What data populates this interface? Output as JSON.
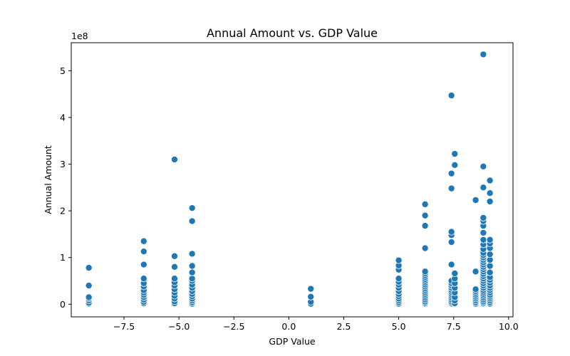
{
  "chart_data": {
    "type": "scatter",
    "title": "Annual Amount vs. GDP Value",
    "xlabel": "GDP Value",
    "ylabel": "Annual Amount",
    "y_scale_label": "1e8",
    "xlim": [
      -9.9,
      10.2
    ],
    "ylim": [
      -0.27,
      5.6
    ],
    "grid": false,
    "x_ticks": [
      -7.5,
      -5.0,
      -2.5,
      0.0,
      2.5,
      5.0,
      7.5,
      10.0
    ],
    "x_tick_labels": [
      "−7.5",
      "−5.0",
      "−2.5",
      "0.0",
      "2.5",
      "5.0",
      "7.5",
      "10.0"
    ],
    "y_ticks": [
      0,
      1,
      2,
      3,
      4,
      5
    ],
    "y_tick_labels": [
      "0",
      "1",
      "2",
      "3",
      "4",
      "5"
    ],
    "color": "#1f77b4",
    "series": [
      {
        "name": "data",
        "points": [
          [
            -9.1,
            0.01
          ],
          [
            -9.1,
            0.03
          ],
          [
            -9.1,
            0.08
          ],
          [
            -9.1,
            0.12
          ],
          [
            -9.1,
            0.15
          ],
          [
            -9.1,
            0.4
          ],
          [
            -9.1,
            0.78
          ],
          [
            -6.6,
            0.02
          ],
          [
            -6.6,
            0.05
          ],
          [
            -6.6,
            0.1
          ],
          [
            -6.6,
            0.15
          ],
          [
            -6.6,
            0.2
          ],
          [
            -6.6,
            0.25
          ],
          [
            -6.6,
            0.3
          ],
          [
            -6.6,
            0.38
          ],
          [
            -6.6,
            0.45
          ],
          [
            -6.6,
            0.55
          ],
          [
            -6.6,
            0.85
          ],
          [
            -6.6,
            1.13
          ],
          [
            -6.6,
            1.35
          ],
          [
            -5.2,
            0.02
          ],
          [
            -5.2,
            0.06
          ],
          [
            -5.2,
            0.12
          ],
          [
            -5.2,
            0.18
          ],
          [
            -5.2,
            0.25
          ],
          [
            -5.2,
            0.32
          ],
          [
            -5.2,
            0.4
          ],
          [
            -5.2,
            0.47
          ],
          [
            -5.2,
            0.55
          ],
          [
            -5.2,
            0.8
          ],
          [
            -5.2,
            1.03
          ],
          [
            -5.2,
            3.1
          ],
          [
            -4.4,
            0.01
          ],
          [
            -4.4,
            0.04
          ],
          [
            -4.4,
            0.08
          ],
          [
            -4.4,
            0.12
          ],
          [
            -4.4,
            0.17
          ],
          [
            -4.4,
            0.22
          ],
          [
            -4.4,
            0.28
          ],
          [
            -4.4,
            0.35
          ],
          [
            -4.4,
            0.42
          ],
          [
            -4.4,
            0.5
          ],
          [
            -4.4,
            0.55
          ],
          [
            -4.4,
            0.68
          ],
          [
            -4.4,
            0.82
          ],
          [
            -4.4,
            1.08
          ],
          [
            -4.4,
            1.78
          ],
          [
            -4.4,
            2.06
          ],
          [
            1.0,
            0.01
          ],
          [
            1.0,
            0.05
          ],
          [
            1.0,
            0.16
          ],
          [
            1.0,
            0.33
          ],
          [
            5.0,
            0.01
          ],
          [
            5.0,
            0.04
          ],
          [
            5.0,
            0.08
          ],
          [
            5.0,
            0.12
          ],
          [
            5.0,
            0.17
          ],
          [
            5.0,
            0.22
          ],
          [
            5.0,
            0.28
          ],
          [
            5.0,
            0.35
          ],
          [
            5.0,
            0.42
          ],
          [
            5.0,
            0.48
          ],
          [
            5.0,
            0.55
          ],
          [
            5.0,
            0.74
          ],
          [
            5.0,
            0.83
          ],
          [
            5.0,
            0.94
          ],
          [
            6.2,
            0.01
          ],
          [
            6.2,
            0.03
          ],
          [
            6.2,
            0.06
          ],
          [
            6.2,
            0.1
          ],
          [
            6.2,
            0.14
          ],
          [
            6.2,
            0.18
          ],
          [
            6.2,
            0.22
          ],
          [
            6.2,
            0.26
          ],
          [
            6.2,
            0.3
          ],
          [
            6.2,
            0.34
          ],
          [
            6.2,
            0.38
          ],
          [
            6.2,
            0.42
          ],
          [
            6.2,
            0.46
          ],
          [
            6.2,
            0.5
          ],
          [
            6.2,
            0.54
          ],
          [
            6.2,
            0.58
          ],
          [
            6.2,
            0.62
          ],
          [
            6.2,
            0.66
          ],
          [
            6.2,
            0.7
          ],
          [
            6.2,
            1.2
          ],
          [
            6.2,
            1.68
          ],
          [
            6.2,
            1.9
          ],
          [
            6.2,
            2.14
          ],
          [
            7.4,
            0.01
          ],
          [
            7.4,
            0.03
          ],
          [
            7.4,
            0.06
          ],
          [
            7.4,
            0.1
          ],
          [
            7.4,
            0.14
          ],
          [
            7.4,
            0.18
          ],
          [
            7.4,
            0.22
          ],
          [
            7.4,
            0.26
          ],
          [
            7.4,
            0.3
          ],
          [
            7.4,
            0.35
          ],
          [
            7.4,
            0.4
          ],
          [
            7.4,
            0.45
          ],
          [
            7.4,
            0.5
          ],
          [
            7.4,
            0.85
          ],
          [
            7.4,
            1.33
          ],
          [
            7.4,
            1.48
          ],
          [
            7.4,
            1.55
          ],
          [
            7.4,
            2.48
          ],
          [
            7.4,
            2.8
          ],
          [
            7.4,
            4.47
          ],
          [
            7.55,
            0.02
          ],
          [
            7.55,
            0.08
          ],
          [
            7.55,
            0.15
          ],
          [
            7.55,
            0.25
          ],
          [
            7.55,
            0.35
          ],
          [
            7.55,
            0.45
          ],
          [
            7.55,
            0.55
          ],
          [
            7.55,
            0.66
          ],
          [
            7.55,
            2.98
          ],
          [
            7.55,
            3.22
          ],
          [
            8.5,
            0.01
          ],
          [
            8.5,
            0.04
          ],
          [
            8.5,
            0.08
          ],
          [
            8.5,
            0.12
          ],
          [
            8.5,
            0.16
          ],
          [
            8.5,
            0.2
          ],
          [
            8.5,
            0.24
          ],
          [
            8.5,
            0.28
          ],
          [
            8.5,
            0.32
          ],
          [
            8.5,
            0.7
          ],
          [
            8.5,
            2.23
          ],
          [
            8.85,
            0.01
          ],
          [
            8.85,
            0.03
          ],
          [
            8.85,
            0.06
          ],
          [
            8.85,
            0.1
          ],
          [
            8.85,
            0.14
          ],
          [
            8.85,
            0.18
          ],
          [
            8.85,
            0.22
          ],
          [
            8.85,
            0.26
          ],
          [
            8.85,
            0.3
          ],
          [
            8.85,
            0.35
          ],
          [
            8.85,
            0.4
          ],
          [
            8.85,
            0.45
          ],
          [
            8.85,
            0.5
          ],
          [
            8.85,
            0.55
          ],
          [
            8.85,
            0.6
          ],
          [
            8.85,
            0.65
          ],
          [
            8.85,
            0.7
          ],
          [
            8.85,
            0.75
          ],
          [
            8.85,
            0.8
          ],
          [
            8.85,
            0.85
          ],
          [
            8.85,
            0.9
          ],
          [
            8.85,
            0.95
          ],
          [
            8.85,
            1.0
          ],
          [
            8.85,
            1.05
          ],
          [
            8.85,
            1.1
          ],
          [
            8.85,
            1.18
          ],
          [
            8.85,
            1.28
          ],
          [
            8.85,
            1.38
          ],
          [
            8.85,
            1.53
          ],
          [
            8.85,
            1.68
          ],
          [
            8.85,
            1.78
          ],
          [
            8.85,
            1.85
          ],
          [
            8.85,
            2.5
          ],
          [
            8.85,
            2.95
          ],
          [
            8.85,
            5.35
          ],
          [
            9.15,
            0.01
          ],
          [
            9.15,
            0.04
          ],
          [
            9.15,
            0.08
          ],
          [
            9.15,
            0.12
          ],
          [
            9.15,
            0.16
          ],
          [
            9.15,
            0.2
          ],
          [
            9.15,
            0.25
          ],
          [
            9.15,
            0.3
          ],
          [
            9.15,
            0.35
          ],
          [
            9.15,
            0.4
          ],
          [
            9.15,
            0.46
          ],
          [
            9.15,
            0.52
          ],
          [
            9.15,
            0.58
          ],
          [
            9.15,
            0.68
          ],
          [
            9.15,
            0.82
          ],
          [
            9.15,
            0.95
          ],
          [
            9.15,
            1.07
          ],
          [
            9.15,
            1.2
          ],
          [
            9.15,
            1.3
          ],
          [
            9.15,
            1.38
          ],
          [
            9.15,
            2.2
          ],
          [
            9.15,
            2.38
          ],
          [
            9.15,
            2.65
          ]
        ]
      }
    ]
  }
}
